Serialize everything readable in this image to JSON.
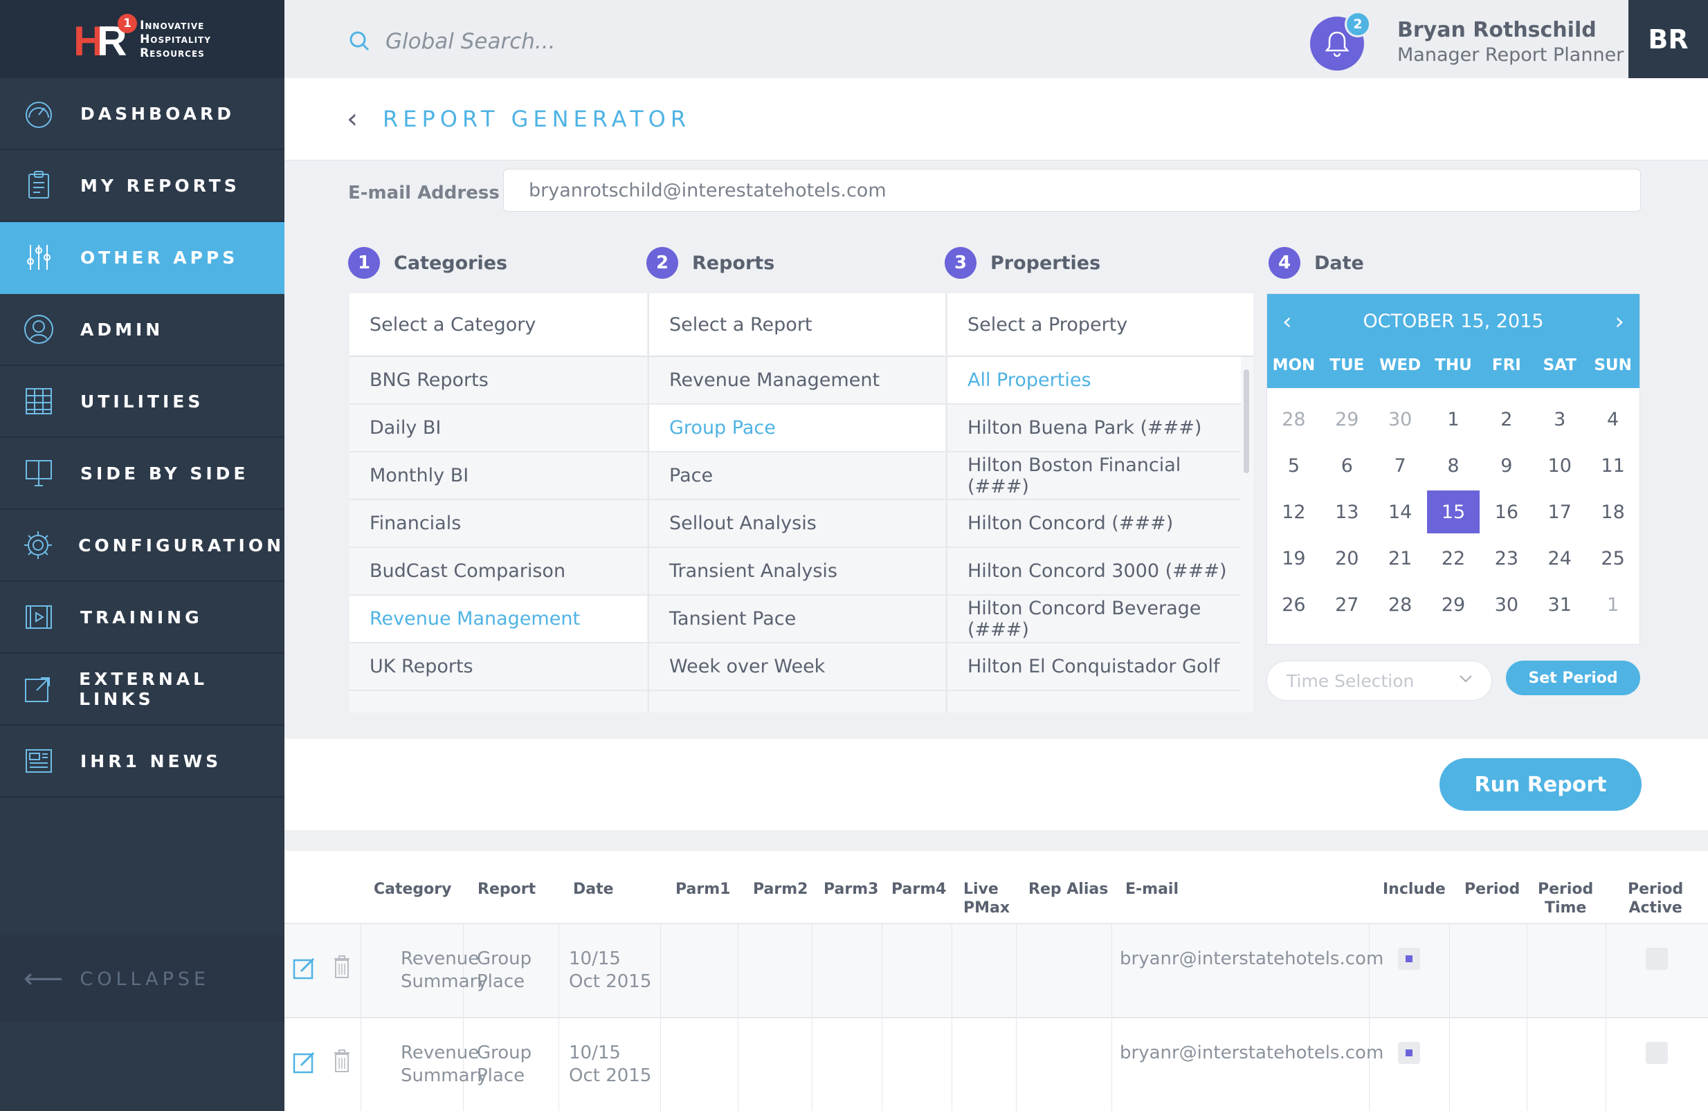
{
  "logo": {
    "line1": "Innovative",
    "line2": "Hospitality",
    "line3": "Resources",
    "mark_h": "H",
    "mark_r": "R",
    "mark_badge": "1"
  },
  "sidebar": {
    "items": [
      {
        "label": "DASHBOARD",
        "icon": "gauge-icon"
      },
      {
        "label": "MY REPORTS",
        "icon": "clipboard-icon"
      },
      {
        "label": "OTHER APPS",
        "icon": "sliders-icon",
        "active": true
      },
      {
        "label": "ADMIN",
        "icon": "user-circle-icon"
      },
      {
        "label": "UTILITIES",
        "icon": "grid-icon"
      },
      {
        "label": "SIDE BY SIDE",
        "icon": "presentation-icon"
      },
      {
        "label": "CONFIGURATION",
        "icon": "gear-icon"
      },
      {
        "label": "TRAINING",
        "icon": "video-icon"
      },
      {
        "label": "EXTERNAL LINKS",
        "icon": "external-link-icon"
      },
      {
        "label": "IHR1 NEWS",
        "icon": "newspaper-icon"
      }
    ],
    "collapse_label": "COLLAPSE"
  },
  "header": {
    "search_placeholder": "Global Search...",
    "notification_count": "2",
    "user_name": "Bryan Rothschild",
    "user_role": "Manager Report Planner",
    "avatar_initials": "BR"
  },
  "page": {
    "title": "REPORT GENERATOR"
  },
  "email": {
    "label": "E-mail Address",
    "value": "bryanrotschild@interestatehotels.com"
  },
  "steps": [
    {
      "num": "1",
      "label": "Categories"
    },
    {
      "num": "2",
      "label": "Reports"
    },
    {
      "num": "3",
      "label": "Properties"
    },
    {
      "num": "4",
      "label": "Date"
    }
  ],
  "categories": {
    "header": "Select a Category",
    "items": [
      "BNG Reports",
      "Daily BI",
      "Monthly BI",
      "Financials",
      "BudCast Comparison",
      "Revenue Management",
      "UK Reports"
    ],
    "selected": 5
  },
  "reports": {
    "header": "Select a Report",
    "items": [
      "Revenue Management",
      "Group Pace",
      "Pace",
      "Sellout Analysis",
      "Transient Analysis",
      "Tansient Pace",
      "Week over Week"
    ],
    "selected": 1
  },
  "properties": {
    "header": "Select a Property",
    "items": [
      "All Properties",
      "Hilton Buena Park (###)",
      "Hilton Boston Financial (###)",
      "Hilton Concord (###)",
      "Hilton Concord 3000 (###)",
      "Hilton Concord Beverage (###)",
      "Hilton El Conquistador Golf"
    ],
    "selected": 0
  },
  "calendar": {
    "title": "OCTOBER 15, 2015",
    "dows": [
      "MON",
      "TUE",
      "WED",
      "THU",
      "FRI",
      "SAT",
      "SUN"
    ],
    "weeks": [
      [
        "28",
        "29",
        "30",
        "1",
        "2",
        "3",
        "4"
      ],
      [
        "5",
        "6",
        "7",
        "8",
        "9",
        "10",
        "11"
      ],
      [
        "12",
        "13",
        "14",
        "15",
        "16",
        "17",
        "18"
      ],
      [
        "19",
        "20",
        "21",
        "22",
        "23",
        "24",
        "25"
      ],
      [
        "26",
        "27",
        "28",
        "29",
        "30",
        "31",
        "1"
      ]
    ],
    "selected_day": "15"
  },
  "time_selection": {
    "placeholder": "Time Selection"
  },
  "buttons": {
    "set_period": "Set Period",
    "run_report": "Run Report"
  },
  "table": {
    "headers": {
      "category": "Category",
      "report": "Report",
      "date": "Date",
      "parm1": "Parm1",
      "parm2": "Parm2",
      "parm3": "Parm3",
      "parm4": "Parm4",
      "live_pmax_1": "Live",
      "live_pmax_2": "PMax",
      "rep_alias": "Rep Alias",
      "email": "E-mail",
      "include": "Include",
      "period": "Period",
      "period_time_1": "Period",
      "period_time_2": "Time",
      "period_active_1": "Period",
      "period_active_2": "Active"
    },
    "rows": [
      {
        "category_1": "Revenue",
        "category_2": "Summary",
        "report_1": "Group",
        "report_2": "Place",
        "date_1": "10/15",
        "date_2": "Oct 2015",
        "email": "bryanr@interstatehotels.com",
        "include": true,
        "period_active": false
      },
      {
        "category_1": "Revenue",
        "category_2": "Summary",
        "report_1": "Group",
        "report_2": "Place",
        "date_1": "10/15",
        "date_2": "Oct 2015",
        "email": "bryanr@interstatehotels.com",
        "include": true,
        "period_active": false
      }
    ]
  },
  "colors": {
    "accent": "#4fb3e4",
    "purple": "#6b63d9",
    "sidebar": "#2d3a4a"
  }
}
